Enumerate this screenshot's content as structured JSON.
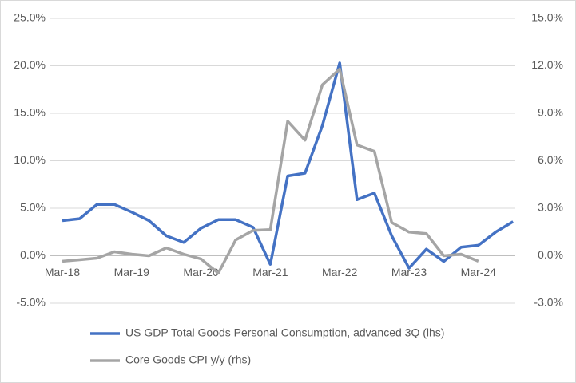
{
  "chart_data": {
    "type": "line",
    "categories": [
      "Mar-18",
      null,
      null,
      null,
      "Mar-19",
      null,
      null,
      null,
      "Mar-20",
      null,
      null,
      null,
      "Mar-21",
      null,
      null,
      null,
      "Mar-22",
      null,
      null,
      null,
      "Mar-23",
      null,
      null,
      null,
      "Mar-24",
      null,
      null
    ],
    "series": [
      {
        "name": "US GDP Total Goods Personal Consumption, advanced 3Q (lhs)",
        "color": "#4472c4",
        "values": [
          3.7,
          3.9,
          5.4,
          5.4,
          4.6,
          3.7,
          2.1,
          1.4,
          2.9,
          3.8,
          3.8,
          3.0,
          -0.9,
          8.4,
          8.7,
          13.7,
          20.3,
          5.9,
          6.6,
          2.1,
          -1.3,
          0.7,
          -0.6,
          0.9,
          1.1,
          2.5,
          3.6
        ]
      },
      {
        "name": "Core Goods CPI y/y (rhs)",
        "color": "#a5a5a5",
        "axis": "y2",
        "values": [
          -0.35,
          -0.25,
          -0.15,
          0.25,
          0.1,
          0.0,
          0.5,
          0.1,
          -0.2,
          -1.1,
          1.0,
          1.6,
          1.65,
          8.5,
          7.3,
          10.8,
          11.8,
          7.0,
          6.6,
          2.1,
          1.5,
          1.4,
          0.0,
          0.1,
          -0.35,
          null,
          null
        ]
      }
    ],
    "ylim": [
      -5,
      25
    ],
    "yticks": [
      {
        "value": -5,
        "label": "-5.0%"
      },
      {
        "value": 0,
        "label": "0.0%"
      },
      {
        "value": 5,
        "label": "5.0%"
      },
      {
        "value": 10,
        "label": "10.0%"
      },
      {
        "value": 15,
        "label": "15.0%"
      },
      {
        "value": 20,
        "label": "20.0%"
      },
      {
        "value": 25,
        "label": "25.0%"
      }
    ],
    "y2lim": [
      -3,
      15
    ],
    "y2ticks": [
      {
        "value": -3,
        "label": "-3.0%"
      },
      {
        "value": 0,
        "label": "0.0%"
      },
      {
        "value": 3,
        "label": "3.0%"
      },
      {
        "value": 6,
        "label": "6.0%"
      },
      {
        "value": 9,
        "label": "9.0%"
      },
      {
        "value": 12,
        "label": "12.0%"
      },
      {
        "value": 15,
        "label": "15.0%"
      }
    ],
    "grid": true,
    "legend": "bottom"
  }
}
